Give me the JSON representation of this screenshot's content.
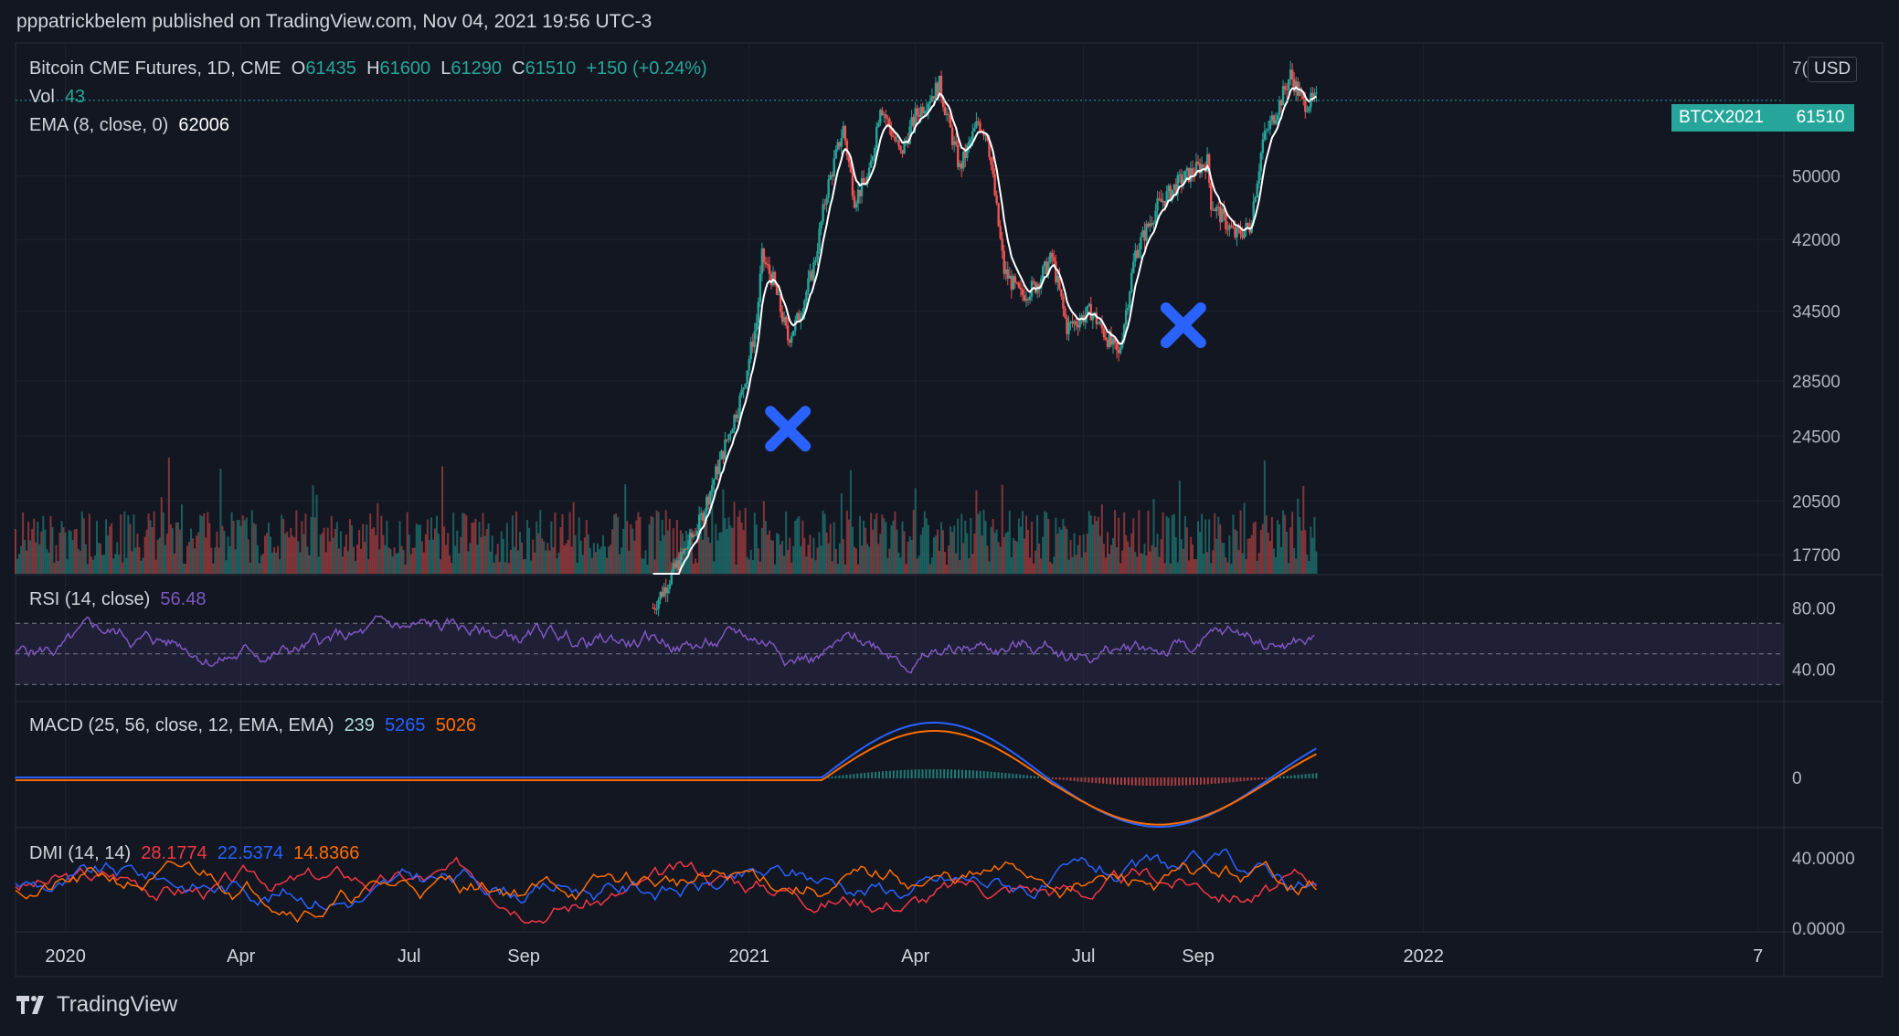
{
  "publisher_line": "pppatrickbelem published on TradingView.com, Nov 04, 2021 19:56 UTC-3",
  "brand": "TradingView",
  "main": {
    "symbol": "Bitcoin CME Futures, 1D, CME",
    "o_label": "O",
    "o": "61435",
    "h_label": "H",
    "h": "61600",
    "l_label": "L",
    "l": "61290",
    "c_label": "C",
    "c": "61510",
    "change": "+150 (+0.24%)",
    "vol_label": "Vol",
    "vol": "43",
    "ema_label": "EMA (8, close, 0)",
    "ema": "62006",
    "currency": "USD",
    "price_tag_symbol": "BTCX2021",
    "price_tag_value": "61510",
    "top_tick_partial": "7("
  },
  "rsi": {
    "label": "RSI (14, close)",
    "value": "56.48"
  },
  "macd": {
    "label": "MACD (25, 56, close, 12, EMA, EMA)",
    "hist": "239",
    "macd": "5265",
    "signal": "5026"
  },
  "dmi": {
    "label": "DMI (14, 14)",
    "adx": "28.1774",
    "plus": "22.5374",
    "minus": "14.8366"
  },
  "colors": {
    "background": "#131722",
    "up": "#26a69a",
    "down": "#ef5350",
    "ema": "#ffffff",
    "rsi": "#7e57c2",
    "macd": "#2962ff",
    "signal": "#ff6d00",
    "adx": "#f23645",
    "marker": "#2962ff"
  },
  "chart_data": {
    "type": "candlestick",
    "title": "Bitcoin CME Futures, 1D, CME",
    "x_ticks": [
      "2020",
      "Apr",
      "Jul",
      "Sep",
      "2021",
      "Apr",
      "Jul",
      "Sep",
      "2022",
      "7"
    ],
    "y_ticks_main": [
      "50000",
      "42000",
      "34500",
      "28500",
      "24500",
      "20500",
      "17700"
    ],
    "y_ticks_rsi": [
      "80.00",
      "40.00"
    ],
    "y_ticks_macd": [
      "0"
    ],
    "y_ticks_dmi": [
      "40.0000",
      "0.0000"
    ],
    "y_scale": "log",
    "x_range": [
      "2019-12-01",
      "2022-07-15"
    ],
    "main_range": [
      16800,
      72000
    ],
    "close_path": [
      [
        "2020-11-10",
        15300
      ],
      [
        "2020-11-25",
        17500
      ],
      [
        "2020-12-05",
        19300
      ],
      [
        "2020-12-18",
        23500
      ],
      [
        "2020-12-28",
        27500
      ],
      [
        "2021-01-05",
        33500
      ],
      [
        "2021-01-08",
        40000
      ],
      [
        "2021-01-14",
        37500
      ],
      [
        "2021-01-22",
        32000
      ],
      [
        "2021-01-28",
        34000
      ],
      [
        "2021-02-05",
        39000
      ],
      [
        "2021-02-12",
        48000
      ],
      [
        "2021-02-21",
        57000
      ],
      [
        "2021-02-27",
        47000
      ],
      [
        "2021-03-07",
        50000
      ],
      [
        "2021-03-13",
        61000
      ],
      [
        "2021-03-24",
        53000
      ],
      [
        "2021-04-01",
        59000
      ],
      [
        "2021-04-14",
        64200
      ],
      [
        "2021-04-25",
        51000
      ],
      [
        "2021-05-05",
        58000
      ],
      [
        "2021-05-10",
        56000
      ],
      [
        "2021-05-19",
        38500
      ],
      [
        "2021-05-28",
        36000
      ],
      [
        "2021-06-05",
        37000
      ],
      [
        "2021-06-14",
        40000
      ],
      [
        "2021-06-22",
        33000
      ],
      [
        "2021-07-05",
        34500
      ],
      [
        "2021-07-20",
        30500
      ],
      [
        "2021-07-29",
        40500
      ],
      [
        "2021-08-10",
        46000
      ],
      [
        "2021-08-23",
        49500
      ],
      [
        "2021-09-06",
        52000
      ],
      [
        "2021-09-08",
        46500
      ],
      [
        "2021-09-21",
        42500
      ],
      [
        "2021-09-29",
        43500
      ],
      [
        "2021-10-06",
        55000
      ],
      [
        "2021-10-15",
        61000
      ],
      [
        "2021-10-21",
        66000
      ],
      [
        "2021-10-28",
        61000
      ],
      [
        "2021-11-04",
        61510
      ]
    ],
    "markers": [
      {
        "shape": "x",
        "date": "2021-01-22",
        "price": 25000
      },
      {
        "shape": "x",
        "date": "2021-08-24",
        "price": 33200
      }
    ],
    "rsi_range": [
      20,
      100
    ],
    "rsi_band": [
      30,
      70
    ],
    "macd_zero_label": "0",
    "dmi_range": [
      0,
      55
    ]
  }
}
